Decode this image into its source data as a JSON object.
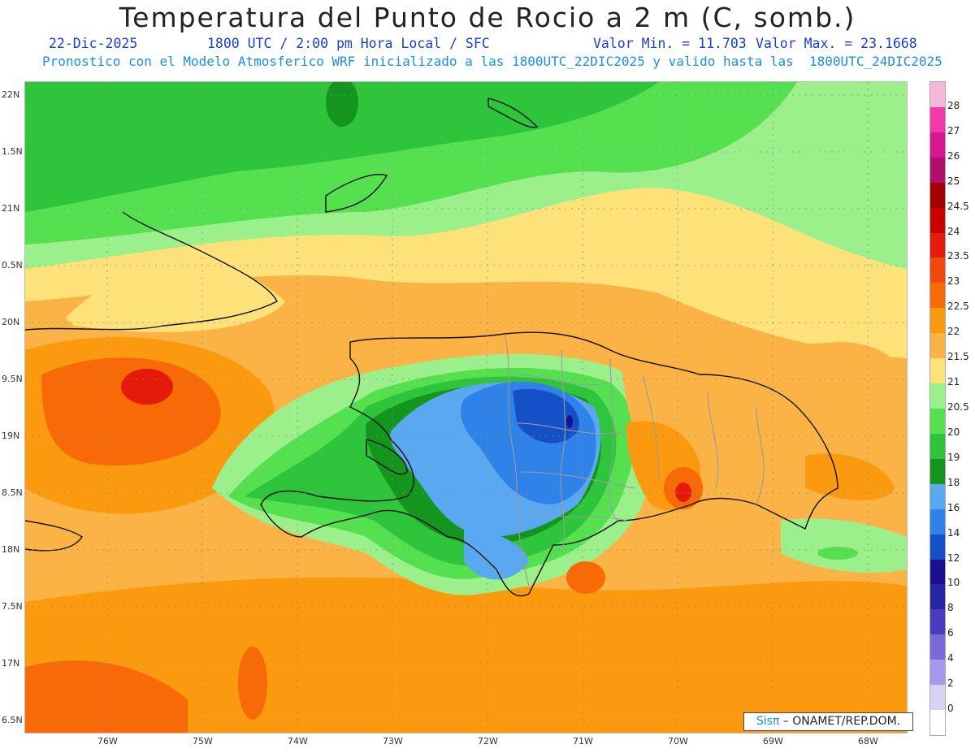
{
  "title": "Temperatura del Punto de Rocio a 2 m (C, somb.)",
  "date": "22-Dic-2025",
  "time_info": "1800 UTC / 2:00 pm Hora Local / SFC",
  "valor_min": "Valor Min. = 11.703",
  "valor_max": "Valor Max. = 23.1668",
  "model_info": "Pronostico con el Modelo Atmosferico WRF inicializado a las 1800UTC_22DIC2025 y valido hasta las  1800UTC_24DIC2025",
  "lat_labels": [
    "22N",
    "1.5N",
    "21N",
    "0.5N",
    "20N",
    "9.5N",
    "19N",
    "8.5N",
    "18N",
    "7.5N",
    "17N",
    "6.5N"
  ],
  "lon_labels": [
    "76W",
    "75W",
    "74W",
    "73W",
    "72W",
    "71W",
    "70W",
    "69W",
    "68W"
  ],
  "colorbar": {
    "labels": [
      "28",
      "27",
      "26",
      "25",
      "24.5",
      "24",
      "23.5",
      "23",
      "22.5",
      "22",
      "21.5",
      "21",
      "20.5",
      "20",
      "19",
      "18",
      "16",
      "14",
      "12",
      "10",
      "8",
      "6",
      "4",
      "2",
      "0"
    ],
    "colors": [
      "#f5b8d8",
      "#f03aa8",
      "#d81890",
      "#b0106a",
      "#a00000",
      "#c80000",
      "#e61a0a",
      "#f04a0a",
      "#f86a08",
      "#fb9a0e",
      "#fbb346",
      "#fde27a",
      "#9cf08c",
      "#55e050",
      "#2ec43c",
      "#14961e",
      "#5aa8f0",
      "#2e82e8",
      "#1650c8",
      "#1a1090",
      "#2824a8",
      "#4a3cc0",
      "#7a6ad8",
      "#a898f0",
      "#d6d2f6"
    ],
    "bottom_color": "#ffffff"
  },
  "credit_prefix": "Sisπ",
  "credit_suffix": " – ONAMET/REP.DOM."
}
